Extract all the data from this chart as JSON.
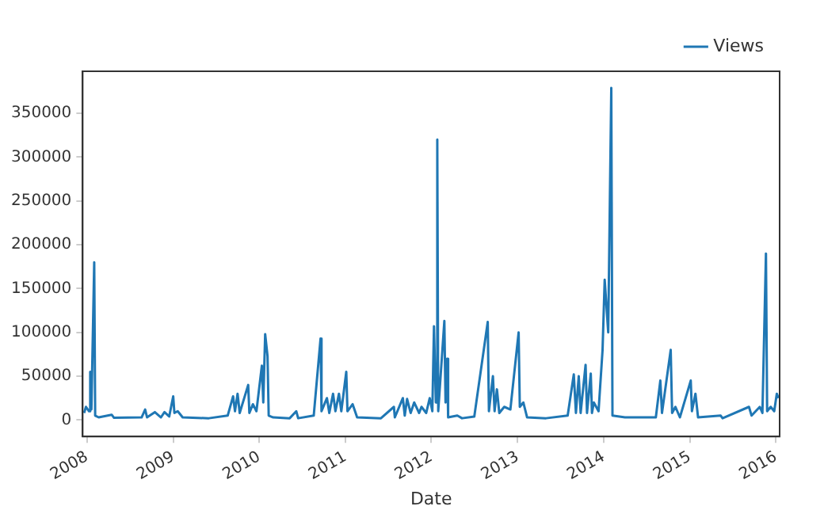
{
  "chart_data": {
    "type": "line",
    "xlabel": "Date",
    "legend": "top right",
    "grid": false,
    "marker": "none",
    "line_style": "solid",
    "xlim": [
      "2007-12-14",
      "2016-01-17"
    ],
    "xticks": [
      {
        "value": "2008",
        "label": "2008"
      },
      {
        "value": "2009",
        "label": "2009"
      },
      {
        "value": "2010",
        "label": "2010"
      },
      {
        "value": "2011",
        "label": "2011"
      },
      {
        "value": "2012",
        "label": "2012"
      },
      {
        "value": "2013",
        "label": "2013"
      },
      {
        "value": "2014",
        "label": "2014"
      },
      {
        "value": "2015",
        "label": "2015"
      },
      {
        "value": "2016",
        "label": "2016"
      }
    ],
    "ylim": [
      -19000,
      398000
    ],
    "yticks": [
      0,
      50000,
      100000,
      150000,
      200000,
      250000,
      300000,
      350000
    ],
    "x": [
      "2007-12-20",
      "2007-12-28",
      "2008-01-10",
      "2008-01-15",
      "2008-01-20",
      "2008-02-01",
      "2008-02-05",
      "2008-02-20",
      "2008-04-15",
      "2008-04-25",
      "2008-08-20",
      "2008-09-04",
      "2008-09-12",
      "2008-10-15",
      "2008-11-10",
      "2008-11-25",
      "2008-12-15",
      "2009-01-01",
      "2009-01-06",
      "2009-01-20",
      "2009-02-10",
      "2009-06-01",
      "2009-08-20",
      "2009-09-12",
      "2009-09-20",
      "2009-10-01",
      "2009-10-10",
      "2009-11-15",
      "2009-11-20",
      "2009-12-05",
      "2009-12-20",
      "2010-01-12",
      "2010-01-18",
      "2010-01-26",
      "2010-02-05",
      "2010-02-10",
      "2010-03-01",
      "2010-05-10",
      "2010-06-07",
      "2010-06-15",
      "2010-08-20",
      "2010-09-18",
      "2010-09-22",
      "2010-10-15",
      "2010-10-25",
      "2010-11-10",
      "2010-11-20",
      "2010-12-05",
      "2010-12-15",
      "2011-01-05",
      "2011-01-10",
      "2011-02-01",
      "2011-02-20",
      "2011-06-01",
      "2011-07-26",
      "2011-07-30",
      "2011-09-02",
      "2011-09-10",
      "2011-09-20",
      "2011-10-05",
      "2011-10-20",
      "2011-11-10",
      "2011-11-20",
      "2011-12-10",
      "2011-12-25",
      "2012-01-05",
      "2012-01-12",
      "2012-01-20",
      "2012-01-26",
      "2012-01-30",
      "2012-02-25",
      "2012-03-01",
      "2012-03-08",
      "2012-03-12",
      "2012-04-20",
      "2012-05-10",
      "2012-07-01",
      "2012-08-27",
      "2012-09-01",
      "2012-09-18",
      "2012-09-25",
      "2012-10-05",
      "2012-10-15",
      "2012-11-05",
      "2012-12-01",
      "2013-01-05",
      "2013-01-10",
      "2013-01-25",
      "2013-02-10",
      "2013-05-01",
      "2013-08-01",
      "2013-08-27",
      "2013-09-05",
      "2013-09-17",
      "2013-09-25",
      "2013-10-16",
      "2013-10-22",
      "2013-11-07",
      "2013-11-12",
      "2013-11-20",
      "2013-12-10",
      "2013-12-27",
      "2014-01-05",
      "2014-01-20",
      "2014-02-02",
      "2014-02-07",
      "2014-04-01",
      "2014-08-10",
      "2014-08-29",
      "2014-09-05",
      "2014-10-12",
      "2014-10-18",
      "2014-11-01",
      "2014-11-20",
      "2015-01-05",
      "2015-01-10",
      "2015-01-25",
      "2015-02-05",
      "2015-05-12",
      "2015-05-20",
      "2015-09-09",
      "2015-09-20",
      "2015-10-25",
      "2015-11-05",
      "2015-11-20",
      "2015-11-25",
      "2015-12-10",
      "2015-12-25",
      "2016-01-05",
      "2016-01-12"
    ],
    "series": [
      {
        "name": "Views",
        "color": "#1f77b4",
        "values": [
          8000,
          15000,
          10000,
          55000,
          12000,
          180000,
          5000,
          3000,
          6000,
          2500,
          3000,
          12000,
          3000,
          9000,
          3000,
          9000,
          4000,
          27000,
          8000,
          10000,
          3000,
          2000,
          5000,
          27000,
          10000,
          30000,
          8000,
          40000,
          8000,
          18000,
          10000,
          62000,
          20000,
          98000,
          73000,
          5000,
          3000,
          2000,
          10000,
          2000,
          5000,
          93000,
          10000,
          25000,
          8000,
          30000,
          10000,
          30000,
          10000,
          55000,
          10000,
          18000,
          3000,
          2000,
          15000,
          3000,
          25000,
          5000,
          24000,
          8000,
          20000,
          8000,
          15000,
          8000,
          25000,
          10000,
          107000,
          20000,
          320000,
          10000,
          113000,
          20000,
          70000,
          3000,
          5000,
          2000,
          4000,
          112000,
          10000,
          50000,
          10000,
          35000,
          8000,
          15000,
          12000,
          100000,
          15000,
          20000,
          3000,
          2000,
          5000,
          52000,
          8000,
          50000,
          8000,
          63000,
          8000,
          53000,
          8000,
          20000,
          10000,
          80000,
          160000,
          100000,
          379000,
          5000,
          3000,
          3000,
          45000,
          8000,
          80000,
          8000,
          15000,
          3000,
          45000,
          10000,
          30000,
          3000,
          5000,
          2000,
          15000,
          5000,
          15000,
          8000,
          190000,
          10000,
          15000,
          10000,
          30000,
          25000
        ]
      }
    ]
  }
}
